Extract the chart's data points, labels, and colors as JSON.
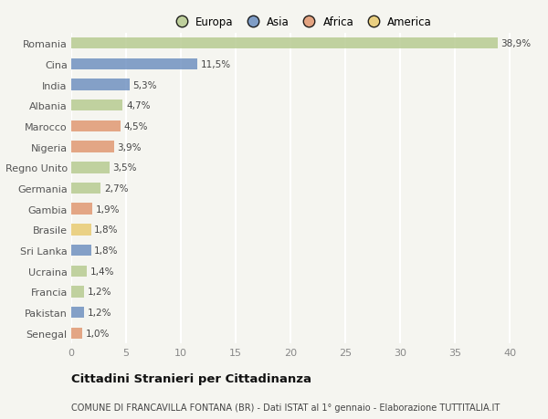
{
  "categories": [
    "Romania",
    "Cina",
    "India",
    "Albania",
    "Marocco",
    "Nigeria",
    "Regno Unito",
    "Germania",
    "Gambia",
    "Brasile",
    "Sri Lanka",
    "Ucraina",
    "Francia",
    "Pakistan",
    "Senegal"
  ],
  "values": [
    38.9,
    11.5,
    5.3,
    4.7,
    4.5,
    3.9,
    3.5,
    2.7,
    1.9,
    1.8,
    1.8,
    1.4,
    1.2,
    1.2,
    1.0
  ],
  "labels": [
    "38,9%",
    "11,5%",
    "5,3%",
    "4,7%",
    "4,5%",
    "3,9%",
    "3,5%",
    "2,7%",
    "1,9%",
    "1,8%",
    "1,8%",
    "1,4%",
    "1,2%",
    "1,2%",
    "1,0%"
  ],
  "colors": [
    "#b5c98e",
    "#6b8ebf",
    "#6b8ebf",
    "#b5c98e",
    "#e0956e",
    "#e0956e",
    "#b5c98e",
    "#b5c98e",
    "#e0956e",
    "#e8c96e",
    "#6b8ebf",
    "#b5c98e",
    "#b5c98e",
    "#6b8ebf",
    "#e0956e"
  ],
  "legend_labels": [
    "Europa",
    "Asia",
    "Africa",
    "America"
  ],
  "legend_colors": [
    "#b5c98e",
    "#6b8ebf",
    "#e0956e",
    "#e8c96e"
  ],
  "title": "Cittadini Stranieri per Cittadinanza",
  "subtitle": "COMUNE DI FRANCAVILLA FONTANA (BR) - Dati ISTAT al 1° gennaio - Elaborazione TUTTITALIA.IT",
  "xlim": [
    0,
    42
  ],
  "xticks": [
    0,
    5,
    10,
    15,
    20,
    25,
    30,
    35,
    40
  ],
  "background_color": "#f5f5f0",
  "grid_color": "#ffffff",
  "bar_height": 0.55
}
